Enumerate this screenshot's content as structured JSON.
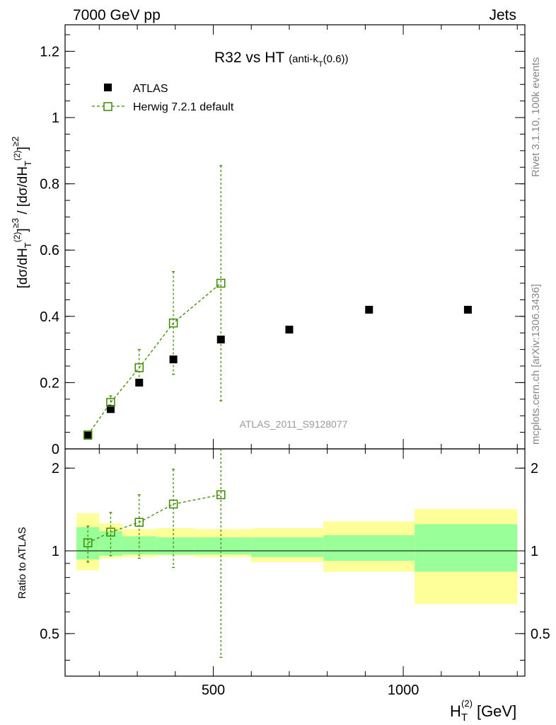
{
  "header": {
    "left": "7000 GeV pp",
    "right": "Jets"
  },
  "side_labels": {
    "rivet": "Rivet 3.1.10,  100k events",
    "mcplots": "mcplots.cern.ch [arXiv:1306.3436]"
  },
  "analysis_id": "ATLAS_2011_S9128077",
  "colors": {
    "data": "#000000",
    "mc": "#3a8a00",
    "band_outer": "#ffff99",
    "band_inner": "#99ff99"
  },
  "chart_data": [
    {
      "type": "scatter",
      "title": "R32 vs HT",
      "title_suffix": "(anti-kT(0.6))",
      "xlabel": "HT(2) [GeV]",
      "ylabel": "[dσ/dHT(2)]≥3 / [dσ/dHT(2)]≥2",
      "xlim": [
        110,
        1320
      ],
      "ylim": [
        0,
        1.28
      ],
      "x_ticks": [
        500,
        1000
      ],
      "x_tick_labels": [
        "500",
        "1000"
      ],
      "y_ticks": [
        0,
        0.2,
        0.4,
        0.6,
        0.8,
        1.0,
        1.2
      ],
      "y_tick_labels": [
        "0",
        "0.2",
        "0.4",
        "0.6",
        "0.8",
        "1",
        "1.2"
      ],
      "legend_position": "top-left",
      "series": [
        {
          "name": "ATLAS",
          "marker": "filled-square",
          "x": [
            170,
            230,
            305,
            395,
            520,
            700,
            910,
            1170
          ],
          "y": [
            0.04,
            0.12,
            0.2,
            0.27,
            0.33,
            0.36,
            0.42,
            0.42
          ]
        },
        {
          "name": "Herwig 7.2.1 default",
          "marker": "open-square",
          "line": "dashed",
          "x": [
            170,
            230,
            305,
            395,
            520
          ],
          "y": [
            0.042,
            0.14,
            0.245,
            0.38,
            0.5
          ],
          "y_err_low": [
            0.005,
            0.02,
            0.055,
            0.155,
            0.355
          ],
          "y_err_high": [
            0.005,
            0.02,
            0.055,
            0.155,
            0.355
          ]
        }
      ]
    },
    {
      "type": "line",
      "ylabel": "Ratio to ATLAS",
      "xlim": [
        110,
        1320
      ],
      "ylim": [
        0.35,
        2.35
      ],
      "y_scale": "log",
      "y_ticks": [
        0.5,
        1,
        2
      ],
      "y_tick_labels": [
        "0.5",
        "1",
        "2"
      ],
      "reference_line": 1,
      "bands": [
        {
          "x_low": 140,
          "x_high": 200,
          "outer": [
            0.85,
            1.37
          ],
          "inner": [
            0.93,
            1.22
          ]
        },
        {
          "x_low": 200,
          "x_high": 260,
          "outer": [
            0.94,
            1.26
          ],
          "inner": [
            0.96,
            1.18
          ]
        },
        {
          "x_low": 260,
          "x_high": 350,
          "outer": [
            0.95,
            1.2
          ],
          "inner": [
            0.97,
            1.13
          ]
        },
        {
          "x_low": 350,
          "x_high": 450,
          "outer": [
            0.96,
            1.21
          ],
          "inner": [
            0.97,
            1.12
          ]
        },
        {
          "x_low": 450,
          "x_high": 600,
          "outer": [
            0.95,
            1.2
          ],
          "inner": [
            0.97,
            1.12
          ]
        },
        {
          "x_low": 600,
          "x_high": 790,
          "outer": [
            0.91,
            1.21
          ],
          "inner": [
            0.95,
            1.12
          ]
        },
        {
          "x_low": 790,
          "x_high": 1030,
          "outer": [
            0.84,
            1.28
          ],
          "inner": [
            0.92,
            1.14
          ]
        },
        {
          "x_low": 1030,
          "x_high": 1300,
          "outer": [
            0.64,
            1.42
          ],
          "inner": [
            0.84,
            1.25
          ]
        }
      ],
      "series": [
        {
          "name": "Herwig 7.2.1 default",
          "x": [
            170,
            230,
            305,
            395,
            520
          ],
          "y": [
            1.07,
            1.17,
            1.27,
            1.48,
            1.6
          ],
          "y_err_low": [
            0.16,
            0.21,
            0.33,
            0.61,
            1.19
          ],
          "y_err_high": [
            0.16,
            0.21,
            0.33,
            0.5,
            0.8
          ]
        }
      ]
    }
  ]
}
